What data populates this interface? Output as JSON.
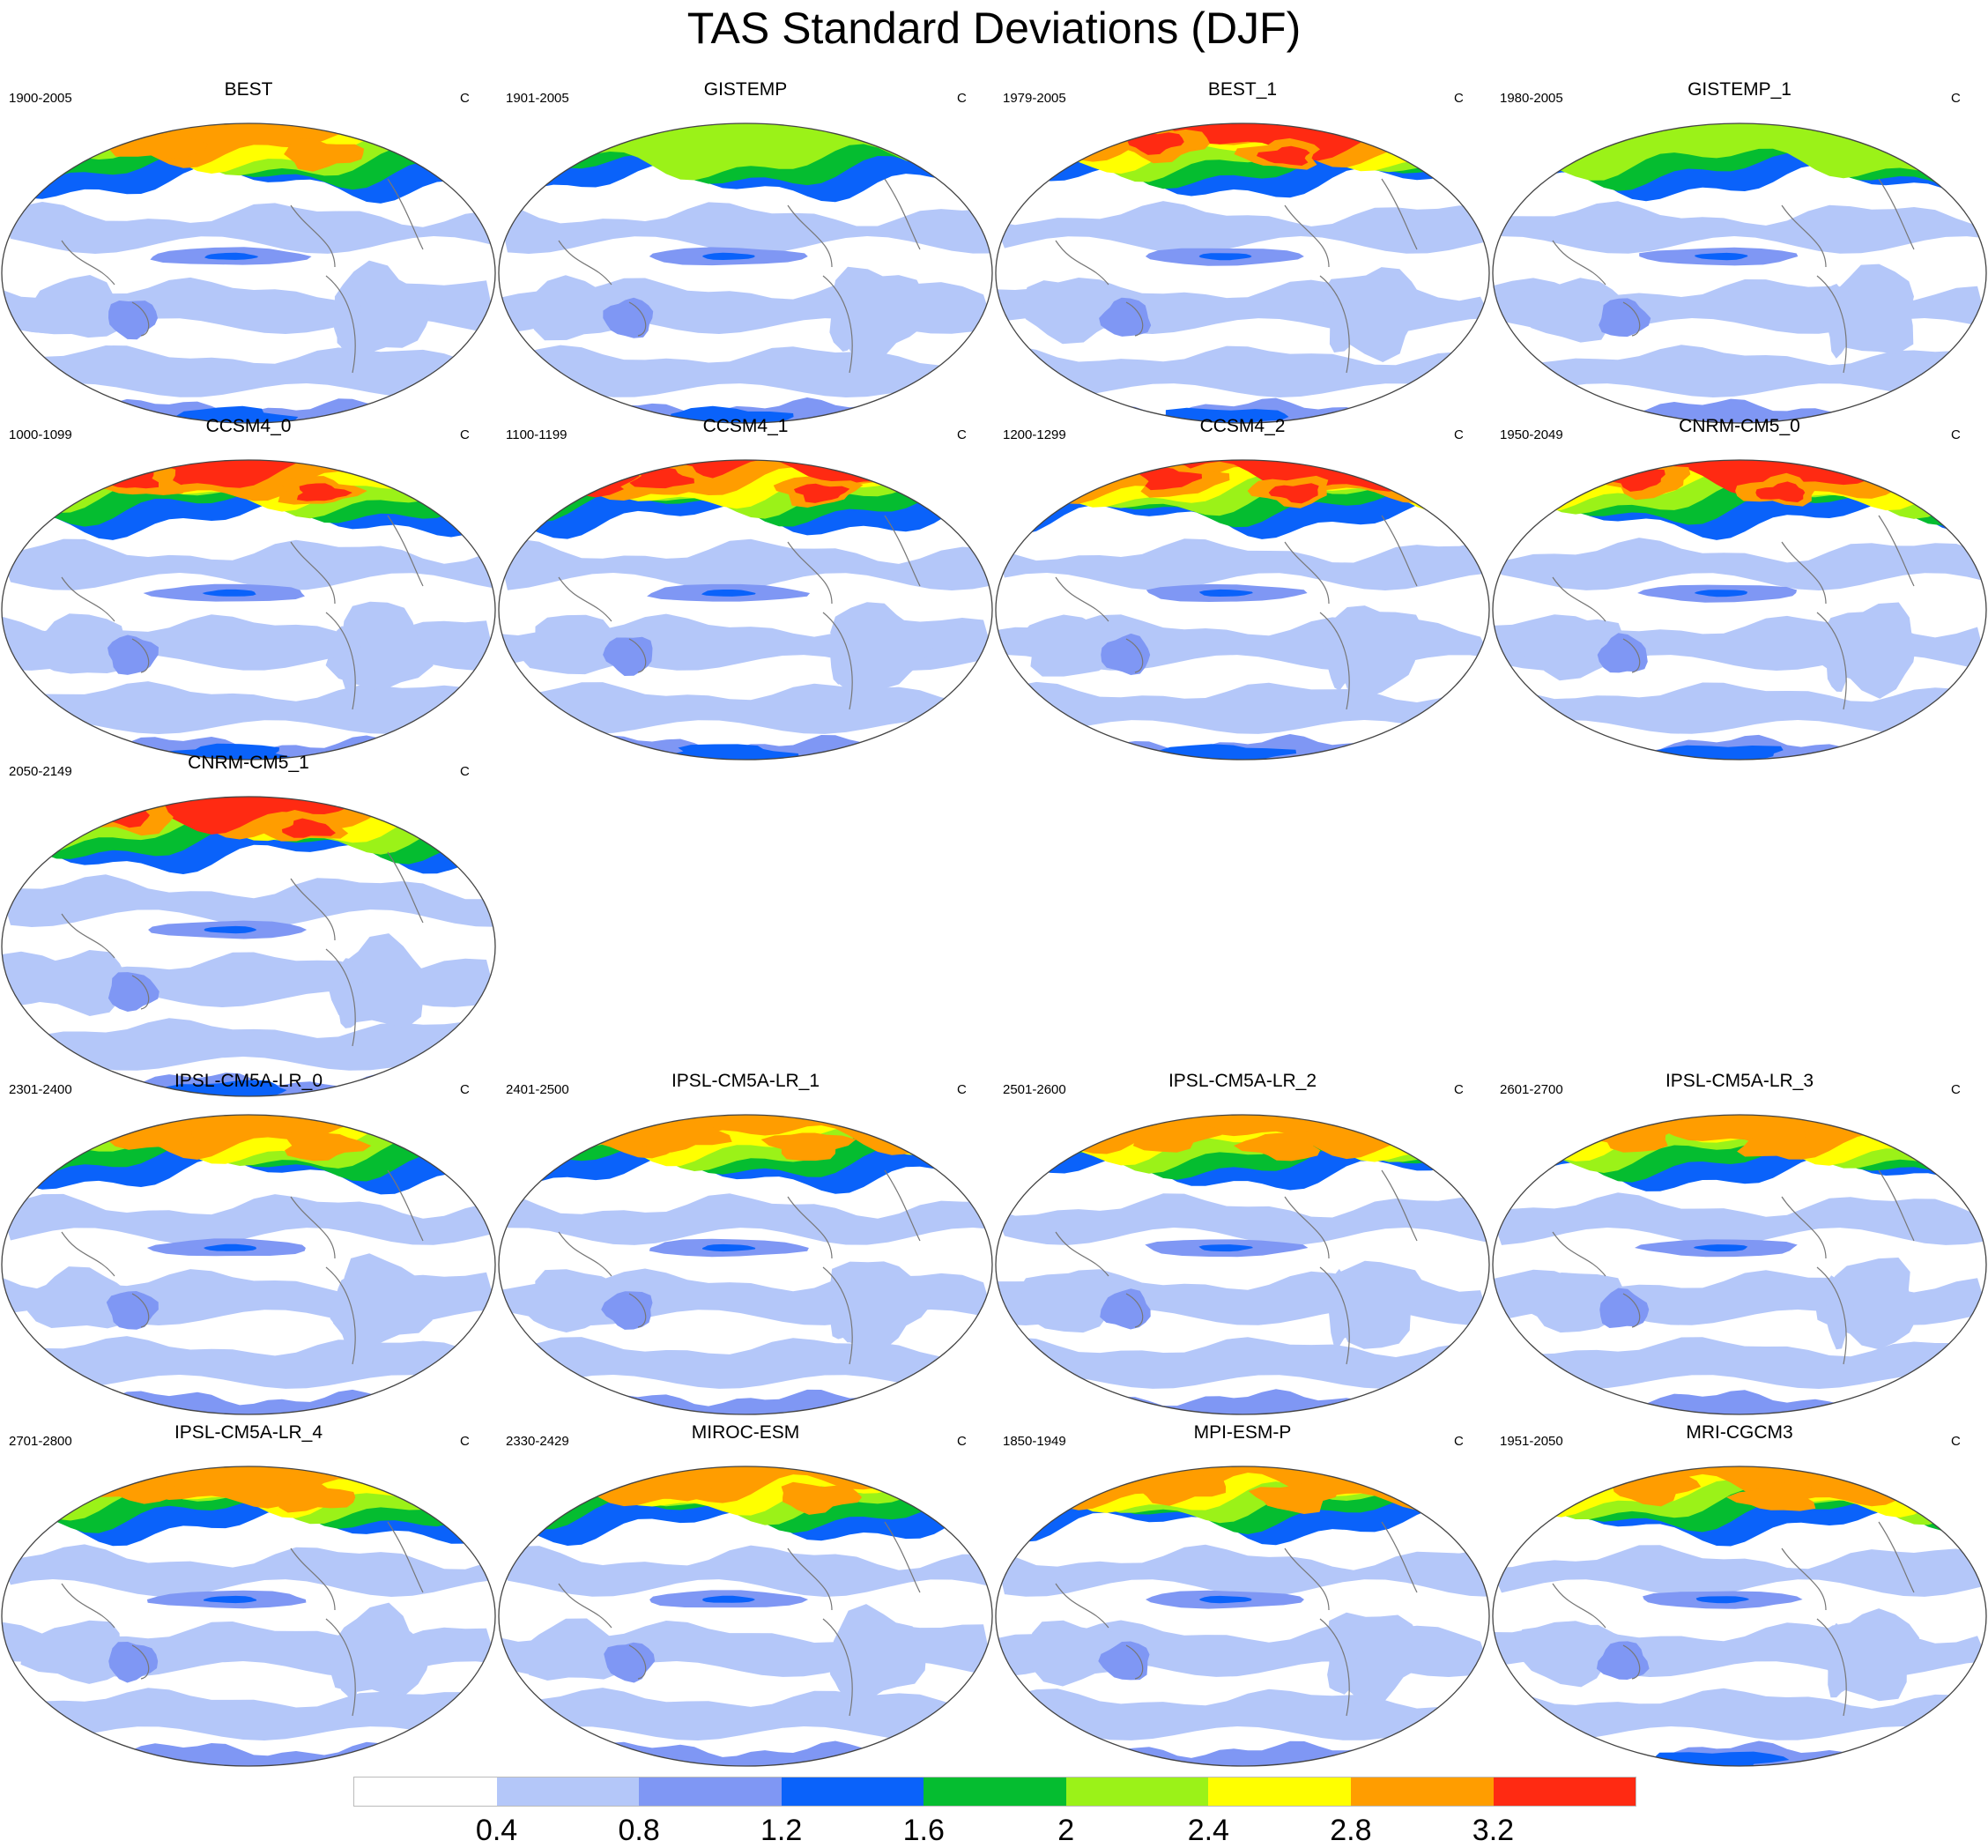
{
  "title": "TAS Standard Deviations (DJF)",
  "panels": [
    {
      "name": "BEST",
      "years": "1900-2005",
      "unit": "C",
      "arctic": "medium",
      "antarctic": "medium"
    },
    {
      "name": "GISTEMP",
      "years": "1901-2005",
      "unit": "C",
      "arctic": "weak",
      "antarctic": "medium"
    },
    {
      "name": "BEST_1",
      "years": "1979-2005",
      "unit": "C",
      "arctic": "strong",
      "antarctic": "medium"
    },
    {
      "name": "GISTEMP_1",
      "years": "1980-2005",
      "unit": "C",
      "arctic": "weak",
      "antarctic": "weak"
    },
    {
      "name": "CCSM4_0",
      "years": "1000-1099",
      "unit": "C",
      "arctic": "strong",
      "antarctic": "strong"
    },
    {
      "name": "CCSM4_1",
      "years": "1100-1199",
      "unit": "C",
      "arctic": "strong",
      "antarctic": "strong"
    },
    {
      "name": "CCSM4_2",
      "years": "1200-1299",
      "unit": "C",
      "arctic": "strong",
      "antarctic": "strong"
    },
    {
      "name": "CNRM-CM5_0",
      "years": "1950-2049",
      "unit": "C",
      "arctic": "strong",
      "antarctic": "strong"
    },
    {
      "name": "CNRM-CM5_1",
      "years": "2050-2149",
      "unit": "C",
      "arctic": "strong",
      "antarctic": "strong"
    },
    {
      "name": "IPSL-CM5A-LR_0",
      "years": "2301-2400",
      "unit": "C",
      "arctic": "medium",
      "antarctic": "weak"
    },
    {
      "name": "IPSL-CM5A-LR_1",
      "years": "2401-2500",
      "unit": "C",
      "arctic": "medium",
      "antarctic": "weak"
    },
    {
      "name": "IPSL-CM5A-LR_2",
      "years": "2501-2600",
      "unit": "C",
      "arctic": "medium",
      "antarctic": "weak"
    },
    {
      "name": "IPSL-CM5A-LR_3",
      "years": "2601-2700",
      "unit": "C",
      "arctic": "medium",
      "antarctic": "weak"
    },
    {
      "name": "IPSL-CM5A-LR_4",
      "years": "2701-2800",
      "unit": "C",
      "arctic": "medium",
      "antarctic": "weak"
    },
    {
      "name": "MIROC-ESM",
      "years": "2330-2429",
      "unit": "C",
      "arctic": "medium",
      "antarctic": "weak"
    },
    {
      "name": "MPI-ESM-P",
      "years": "1850-1949",
      "unit": "C",
      "arctic": "medium",
      "antarctic": "weak"
    },
    {
      "name": "MRI-CGCM3",
      "years": "1951-2050",
      "unit": "C",
      "arctic": "medium",
      "antarctic": "medium"
    }
  ],
  "colorbar": {
    "colors": [
      "#ffffff",
      "#b4c7f9",
      "#7f97f4",
      "#0a62fa",
      "#05bd30",
      "#9bf218",
      "#ffff00",
      "#ff9d00",
      "#ff2a12"
    ],
    "labels": [
      "0.4",
      "0.8",
      "1.2",
      "1.6",
      "2",
      "2.4",
      "2.8",
      "3.2"
    ]
  }
}
